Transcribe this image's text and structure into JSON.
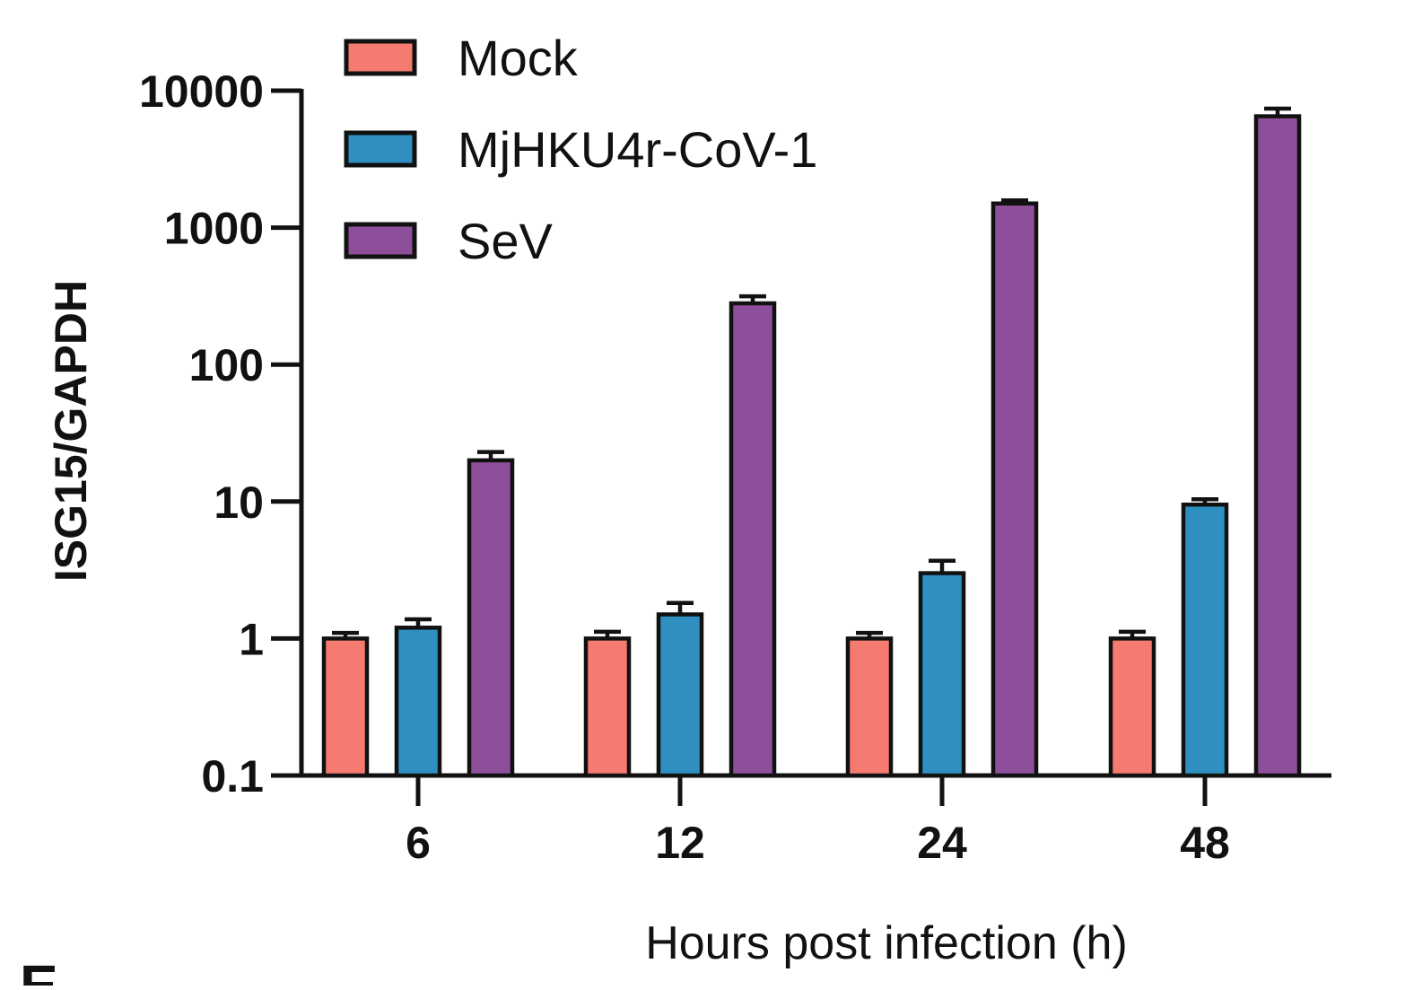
{
  "chart_data": {
    "type": "bar",
    "title": "",
    "xlabel": "Hours post infection (h)",
    "ylabel": "ISG15/GAPDH",
    "yscale": "log",
    "ylim": [
      0.1,
      10000
    ],
    "yticks": [
      {
        "value": 0.1,
        "label": "0.1"
      },
      {
        "value": 1,
        "label": "1"
      },
      {
        "value": 10,
        "label": "10"
      },
      {
        "value": 100,
        "label": "100"
      },
      {
        "value": 1000,
        "label": "1000"
      },
      {
        "value": 10000,
        "label": "10000"
      }
    ],
    "categories": [
      "6",
      "12",
      "24",
      "48"
    ],
    "series": [
      {
        "name": "Mock",
        "color": "#f57a70",
        "values": [
          1.0,
          1.0,
          1.0,
          1.0
        ],
        "error_upper": [
          1.1,
          1.12,
          1.1,
          1.12
        ]
      },
      {
        "name": "MjHKU4r-CoV-1",
        "color": "#2e8fc0",
        "values": [
          1.2,
          1.5,
          3.0,
          9.5
        ],
        "error_upper": [
          1.38,
          1.82,
          3.7,
          10.4
        ]
      },
      {
        "name": "SeV",
        "color": "#8e4f9a",
        "values": [
          20,
          280,
          1500,
          6500
        ],
        "error_upper": [
          23,
          315,
          1580,
          7400
        ]
      }
    ],
    "grid": false,
    "legend_position": "top-left"
  },
  "panel_label": "E"
}
